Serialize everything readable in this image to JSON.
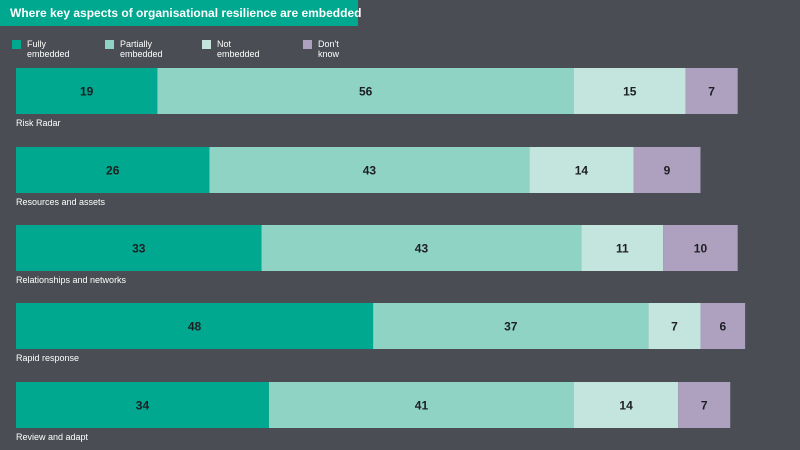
{
  "chart_data": {
    "type": "bar",
    "orientation": "horizontal",
    "stacked": true,
    "title": "Where key aspects of organisational resilience are embedded",
    "categories": [
      "Risk Radar",
      "Resources and assets",
      "Relationships and networks",
      "Rapid response",
      "Review and adapt"
    ],
    "series": [
      {
        "name": "Fully embedded",
        "legend_lines": [
          "Fully",
          "embedded"
        ],
        "color": "#00a88f",
        "values": [
          19,
          26,
          33,
          48,
          34
        ]
      },
      {
        "name": "Partially embedded",
        "legend_lines": [
          "Partially",
          "embedded"
        ],
        "color": "#8fd3c5",
        "values": [
          56,
          43,
          43,
          37,
          41
        ]
      },
      {
        "name": "Not embedded",
        "legend_lines": [
          "Not",
          "embedded"
        ],
        "color": "#c3e5de",
        "values": [
          15,
          14,
          11,
          7,
          14
        ]
      },
      {
        "name": "Don't know",
        "legend_lines": [
          "Don't",
          "know"
        ],
        "color": "#aea1bf",
        "values": [
          7,
          9,
          10,
          6,
          7
        ]
      }
    ],
    "legend_position": "top-left",
    "grid": false
  }
}
